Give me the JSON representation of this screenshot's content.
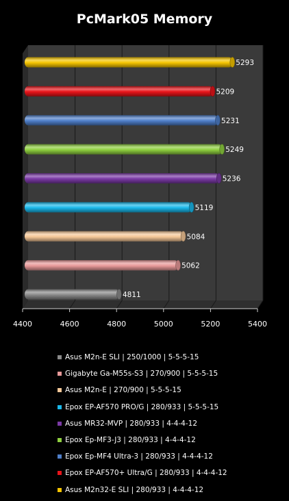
{
  "chart_data": {
    "type": "bar",
    "orientation": "horizontal",
    "title": "PcMark05 Memory",
    "xlim": [
      4400,
      5400
    ],
    "xticks": [
      "4400",
      "4600",
      "4800",
      "5000",
      "5200",
      "5400"
    ],
    "grid": true,
    "legend_position": "bottom",
    "series": [
      {
        "name": "Asus M2n32-E SLI  | 280/933 | 4-4-4-12",
        "value": 5293,
        "label": "5293",
        "color": "#f5c400"
      },
      {
        "name": "Epox EP-AF570+ Ultra/G | 280/933 | 4-4-4-12",
        "value": 5209,
        "label": "5209",
        "color": "#e8141a"
      },
      {
        "name": "Epox Ep-MF4 Ultra-3  | 280/933 | 4-4-4-12",
        "value": 5231,
        "label": "5231",
        "color": "#4f7fc9"
      },
      {
        "name": "Epox Ep-MF3-J3  | 280/933 | 4-4-4-12",
        "value": 5249,
        "label": "5249",
        "color": "#8fd040"
      },
      {
        "name": "Asus MR32-MVP  | 280/933 | 4-4-4-12",
        "value": 5236,
        "label": "5236",
        "color": "#7b3aa6"
      },
      {
        "name": "Epox EP-AF570 PRO/G  | 280/933 | 5-5-5-15",
        "value": 5119,
        "label": "5119",
        "color": "#1ab8ea"
      },
      {
        "name": "Asus M2n-E  | 270/900  | 5-5-5-15",
        "value": 5084,
        "label": "5084",
        "color": "#f5c898"
      },
      {
        "name": "Gigabyte Ga-M55s-S3  | 270/900  | 5-5-5-15",
        "value": 5062,
        "label": "5062",
        "color": "#e89a9a"
      },
      {
        "name": "Asus M2n-E SLI  | 250/1000  | 5-5-5-15",
        "value": 4811,
        "label": "4811",
        "color": "#8a8a8a"
      }
    ]
  }
}
